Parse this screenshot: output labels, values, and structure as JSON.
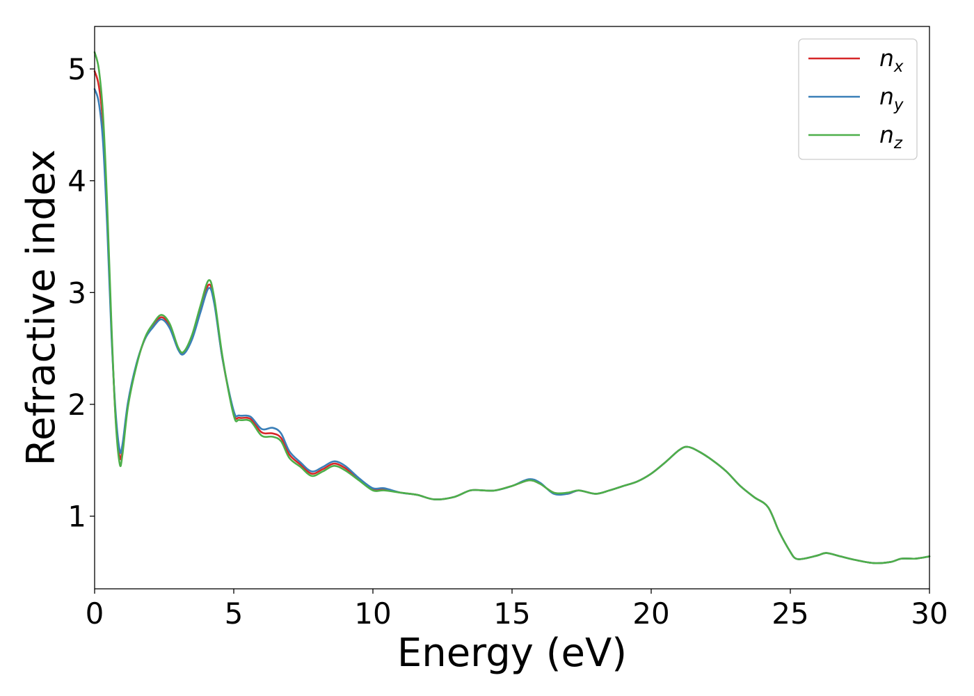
{
  "chart_data": {
    "type": "line",
    "title": "",
    "xlabel": "Energy (eV)",
    "ylabel": "Refractive index",
    "xlim": [
      0,
      30
    ],
    "ylim": [
      0.35,
      5.38
    ],
    "xticks": [
      0,
      5,
      10,
      15,
      20,
      25,
      30
    ],
    "yticks": [
      1,
      2,
      3,
      4,
      5
    ],
    "grid": false,
    "legend": "upper right",
    "series": [
      {
        "name": "n_x",
        "label_main": "n",
        "label_sub": "x",
        "color": "#d62728",
        "x": [
          0,
          0.15,
          0.3,
          0.45,
          0.6,
          0.75,
          0.9,
          1.0,
          1.2,
          1.5,
          1.8,
          2.1,
          2.4,
          2.7,
          3.0,
          3.2,
          3.5,
          3.8,
          4.1,
          4.3,
          4.6,
          5.0,
          5.2,
          5.6,
          6.0,
          6.4,
          6.7,
          7.0,
          7.4,
          7.8,
          8.2,
          8.6,
          9.0,
          9.5,
          10.0,
          10.4,
          11.0,
          11.6,
          12.2,
          12.9,
          13.5,
          14.0,
          14.4,
          15.0,
          15.6,
          16.0,
          16.5,
          17.0,
          17.4,
          18.0,
          18.5,
          19.0,
          19.5,
          20.0,
          20.5,
          21.0,
          21.3,
          21.7,
          22.2,
          22.7,
          23.2,
          23.7,
          24.2,
          24.6,
          25.0,
          25.2,
          25.5,
          26.0,
          26.3,
          26.8,
          27.3,
          28.0,
          28.6,
          29.0,
          29.5,
          30.0
        ],
        "y": [
          4.98,
          4.85,
          4.5,
          3.7,
          2.7,
          1.9,
          1.53,
          1.6,
          2.0,
          2.35,
          2.58,
          2.7,
          2.78,
          2.7,
          2.5,
          2.46,
          2.6,
          2.85,
          3.07,
          2.92,
          2.4,
          1.92,
          1.88,
          1.87,
          1.75,
          1.74,
          1.7,
          1.55,
          1.46,
          1.38,
          1.42,
          1.47,
          1.43,
          1.33,
          1.24,
          1.24,
          1.21,
          1.19,
          1.15,
          1.17,
          1.23,
          1.23,
          1.23,
          1.27,
          1.32,
          1.29,
          1.21,
          1.2,
          1.23,
          1.2,
          1.23,
          1.27,
          1.31,
          1.38,
          1.48,
          1.59,
          1.62,
          1.58,
          1.5,
          1.4,
          1.27,
          1.17,
          1.08,
          0.86,
          0.68,
          0.62,
          0.62,
          0.65,
          0.67,
          0.64,
          0.61,
          0.58,
          0.59,
          0.62,
          0.62,
          0.64
        ]
      },
      {
        "name": "n_y",
        "label_main": "n",
        "label_sub": "y",
        "color": "#3a7fb8",
        "x": [
          0,
          0.15,
          0.3,
          0.45,
          0.6,
          0.75,
          0.9,
          1.0,
          1.2,
          1.5,
          1.8,
          2.1,
          2.4,
          2.7,
          3.0,
          3.2,
          3.5,
          3.8,
          4.1,
          4.3,
          4.6,
          5.0,
          5.2,
          5.6,
          6.0,
          6.4,
          6.7,
          7.0,
          7.4,
          7.8,
          8.2,
          8.6,
          9.0,
          9.5,
          10.0,
          10.4,
          11.0,
          11.6,
          12.2,
          12.9,
          13.5,
          14.0,
          14.4,
          15.0,
          15.6,
          16.0,
          16.5,
          17.0,
          17.4,
          18.0,
          18.5,
          19.0,
          19.5,
          20.0,
          20.5,
          21.0,
          21.3,
          21.7,
          22.2,
          22.7,
          23.2,
          23.7,
          24.2,
          24.6,
          25.0,
          25.2,
          25.5,
          26.0,
          26.3,
          26.8,
          27.3,
          28.0,
          28.6,
          29.0,
          29.5,
          30.0
        ],
        "y": [
          4.82,
          4.7,
          4.35,
          3.6,
          2.65,
          1.95,
          1.59,
          1.64,
          2.02,
          2.36,
          2.58,
          2.69,
          2.76,
          2.68,
          2.49,
          2.45,
          2.58,
          2.82,
          3.04,
          2.9,
          2.4,
          1.94,
          1.9,
          1.89,
          1.78,
          1.79,
          1.74,
          1.58,
          1.48,
          1.4,
          1.44,
          1.49,
          1.45,
          1.34,
          1.25,
          1.25,
          1.21,
          1.19,
          1.15,
          1.17,
          1.23,
          1.23,
          1.23,
          1.27,
          1.33,
          1.3,
          1.2,
          1.2,
          1.23,
          1.2,
          1.23,
          1.27,
          1.31,
          1.38,
          1.48,
          1.59,
          1.62,
          1.58,
          1.5,
          1.4,
          1.27,
          1.17,
          1.08,
          0.86,
          0.68,
          0.62,
          0.62,
          0.65,
          0.67,
          0.64,
          0.61,
          0.58,
          0.59,
          0.62,
          0.62,
          0.64
        ]
      },
      {
        "name": "n_z",
        "label_main": "n",
        "label_sub": "z",
        "color": "#4daf4a",
        "x": [
          0,
          0.15,
          0.3,
          0.45,
          0.6,
          0.75,
          0.9,
          1.0,
          1.2,
          1.5,
          1.8,
          2.1,
          2.4,
          2.7,
          3.0,
          3.2,
          3.5,
          3.8,
          4.1,
          4.3,
          4.6,
          5.0,
          5.2,
          5.6,
          6.0,
          6.4,
          6.7,
          7.0,
          7.4,
          7.8,
          8.2,
          8.6,
          9.0,
          9.5,
          10.0,
          10.4,
          11.0,
          11.6,
          12.2,
          12.9,
          13.5,
          14.0,
          14.4,
          15.0,
          15.6,
          16.0,
          16.5,
          17.0,
          17.4,
          18.0,
          18.5,
          19.0,
          19.5,
          20.0,
          20.5,
          21.0,
          21.3,
          21.7,
          22.2,
          22.7,
          23.2,
          23.7,
          24.2,
          24.6,
          25.0,
          25.2,
          25.5,
          26.0,
          26.3,
          26.8,
          27.3,
          28.0,
          28.6,
          29.0,
          29.5,
          30.0
        ],
        "y": [
          5.15,
          5.0,
          4.6,
          3.8,
          2.75,
          1.88,
          1.47,
          1.55,
          1.98,
          2.34,
          2.59,
          2.72,
          2.8,
          2.72,
          2.51,
          2.47,
          2.62,
          2.88,
          3.11,
          2.95,
          2.42,
          1.9,
          1.86,
          1.85,
          1.72,
          1.71,
          1.67,
          1.52,
          1.44,
          1.36,
          1.4,
          1.45,
          1.41,
          1.32,
          1.23,
          1.23,
          1.21,
          1.19,
          1.15,
          1.17,
          1.23,
          1.23,
          1.23,
          1.27,
          1.32,
          1.29,
          1.21,
          1.21,
          1.23,
          1.2,
          1.23,
          1.27,
          1.31,
          1.38,
          1.48,
          1.59,
          1.62,
          1.58,
          1.5,
          1.4,
          1.27,
          1.17,
          1.08,
          0.86,
          0.68,
          0.62,
          0.62,
          0.65,
          0.67,
          0.64,
          0.61,
          0.58,
          0.59,
          0.62,
          0.62,
          0.64
        ]
      }
    ]
  }
}
